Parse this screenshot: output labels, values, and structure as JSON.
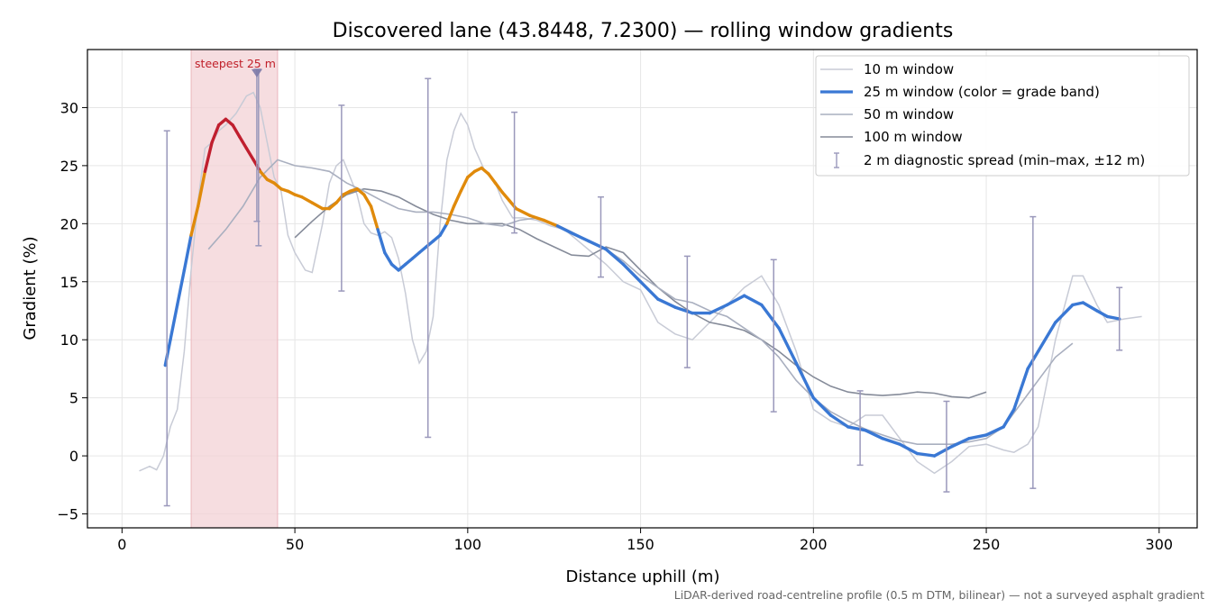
{
  "chart_data": {
    "type": "line",
    "title": "Discovered lane (43.8448, 7.2300) — rolling window gradients",
    "xlabel": "Distance uphill (m)",
    "ylabel": "Gradient (%)",
    "xlim": [
      -10,
      311
    ],
    "ylim": [
      -6.2,
      35
    ],
    "xticks": [
      0,
      50,
      100,
      150,
      200,
      250,
      300
    ],
    "yticks": [
      -5,
      0,
      5,
      10,
      15,
      20,
      25,
      30
    ],
    "grid": true,
    "legend_position": "top-right",
    "footnote": "LiDAR-derived road-centreline profile (0.5 m DTM, bilinear) — not a surveyed asphalt gradient",
    "highlight": {
      "label": "steepest 25 m",
      "x_start": 20,
      "x_end": 45,
      "color": "#f3d2d6",
      "marker_x": 39,
      "marker_y": 33.3
    },
    "grade_band_colors": {
      "low": "#3a78d4",
      "mid": "#e08a0b",
      "high": "#c01f2f"
    },
    "grade_band_thresholds": [
      20,
      25
    ],
    "series": [
      {
        "name": "10 m window",
        "color": "#c8cbd6",
        "x": [
          5,
          8,
          10,
          12,
          14,
          16,
          18,
          20,
          22,
          24,
          26,
          28,
          30,
          33,
          36,
          38,
          40,
          42,
          44,
          46,
          48,
          50,
          53,
          55,
          58,
          60,
          62,
          64,
          66,
          68,
          70,
          72,
          74,
          76,
          78,
          80,
          82,
          84,
          86,
          88,
          90,
          92,
          94,
          96,
          98,
          100,
          102,
          105,
          108,
          110,
          113,
          116,
          120,
          124,
          128,
          132,
          136,
          140,
          145,
          150,
          155,
          160,
          165,
          170,
          175,
          180,
          185,
          190,
          195,
          200,
          205,
          210,
          215,
          220,
          225,
          230,
          235,
          240,
          245,
          250,
          255,
          258,
          262,
          265,
          270,
          275,
          278,
          282,
          285,
          290,
          295
        ],
        "y": [
          -1.3,
          -0.9,
          -1.2,
          0,
          2.5,
          4,
          9,
          16,
          22,
          26.5,
          27,
          28,
          28.5,
          29.5,
          31,
          31.3,
          30,
          27,
          24,
          22.8,
          19,
          17.5,
          16,
          15.8,
          20,
          23.5,
          25,
          25.5,
          24,
          22.5,
          20,
          19.2,
          19,
          19.3,
          18.8,
          17,
          14,
          10,
          8,
          9,
          12,
          20,
          25.5,
          28,
          29.5,
          28.5,
          26.5,
          24.5,
          23.5,
          22,
          20.5,
          20.5,
          20.3,
          19.8,
          19.5,
          18.5,
          17.5,
          16.5,
          15,
          14.3,
          11.5,
          10.5,
          10,
          11.5,
          13,
          14.5,
          15.5,
          13,
          9,
          4,
          3,
          2.5,
          3.5,
          3.5,
          1.5,
          -0.5,
          -1.5,
          -0.5,
          0.8,
          1,
          0.5,
          0.3,
          1,
          2.5,
          10,
          15.5,
          15.5,
          13,
          11.5,
          11.8,
          12
        ]
      },
      {
        "name": "25 m window (color = grade band)",
        "color": "#3a78d4",
        "x": [
          12.5,
          14,
          16,
          18,
          20,
          22,
          24,
          26,
          28,
          30,
          32,
          34,
          36,
          38,
          40,
          42,
          44,
          46,
          48,
          50,
          52,
          55,
          58,
          60,
          62,
          64,
          66,
          68,
          70,
          72,
          74,
          76,
          78,
          80,
          82,
          84,
          86,
          88,
          90,
          92,
          94,
          96,
          98,
          100,
          102,
          104,
          106,
          108,
          110,
          112,
          114,
          118,
          122,
          126,
          130,
          135,
          140,
          145,
          150,
          155,
          160,
          165,
          170,
          175,
          180,
          185,
          190,
          195,
          200,
          205,
          210,
          215,
          220,
          225,
          230,
          235,
          240,
          245,
          250,
          255,
          258,
          262,
          265,
          270,
          275,
          278,
          282,
          285,
          288.5
        ],
        "y": [
          7.8,
          10,
          13,
          16,
          19,
          21.5,
          24.5,
          27,
          28.5,
          29,
          28.5,
          27.5,
          26.5,
          25.5,
          24.5,
          23.8,
          23.5,
          23,
          22.8,
          22.5,
          22.3,
          21.8,
          21.3,
          21.3,
          21.8,
          22.5,
          22.8,
          23,
          22.5,
          21.5,
          19.5,
          17.5,
          16.5,
          16,
          16.5,
          17,
          17.5,
          18,
          18.5,
          19,
          20,
          21.5,
          22.8,
          24,
          24.5,
          24.8,
          24.3,
          23.5,
          22.7,
          22,
          21.3,
          20.7,
          20.3,
          19.8,
          19.2,
          18.5,
          17.8,
          16.5,
          15,
          13.5,
          12.8,
          12.3,
          12.3,
          13,
          13.8,
          13,
          11,
          8,
          5,
          3.5,
          2.5,
          2.2,
          1.5,
          1,
          0.2,
          0,
          0.8,
          1.5,
          1.8,
          2.5,
          4,
          7.5,
          9,
          11.5,
          13,
          13.2,
          12.5,
          12,
          11.8
        ]
      },
      {
        "name": "50 m window",
        "color": "#a9afbf",
        "x": [
          25,
          30,
          35,
          40,
          45,
          50,
          55,
          60,
          65,
          70,
          75,
          80,
          85,
          90,
          95,
          100,
          105,
          110,
          115,
          120,
          125,
          130,
          135,
          140,
          145,
          150,
          155,
          160,
          165,
          170,
          175,
          180,
          185,
          190,
          195,
          200,
          205,
          210,
          215,
          220,
          225,
          230,
          235,
          240,
          245,
          250,
          255,
          260,
          265,
          270,
          275
        ],
        "y": [
          17.8,
          19.5,
          21.5,
          24,
          25.5,
          25,
          24.8,
          24.5,
          23.5,
          22.8,
          22,
          21.3,
          21,
          21,
          20.8,
          20.5,
          20,
          19.8,
          20.3,
          20.5,
          20,
          19.3,
          18.5,
          17.8,
          16.8,
          15.5,
          14.5,
          13.5,
          13.2,
          12.5,
          12,
          11,
          10,
          8.5,
          6.5,
          5,
          3.8,
          3,
          2.3,
          1.8,
          1.3,
          1,
          1,
          1,
          1.2,
          1.5,
          2.5,
          4.5,
          6.5,
          8.5,
          9.7
        ]
      },
      {
        "name": "100 m window",
        "color": "#858b99",
        "x": [
          50,
          55,
          60,
          65,
          70,
          75,
          80,
          85,
          90,
          95,
          100,
          105,
          110,
          115,
          120,
          125,
          130,
          135,
          140,
          145,
          150,
          155,
          160,
          165,
          170,
          175,
          180,
          185,
          190,
          195,
          200,
          205,
          210,
          215,
          220,
          225,
          230,
          235,
          240,
          245,
          250
        ],
        "y": [
          18.8,
          20.2,
          21.5,
          22.5,
          23,
          22.8,
          22.3,
          21.5,
          20.8,
          20.3,
          20,
          20,
          20,
          19.5,
          18.7,
          18,
          17.3,
          17.2,
          18,
          17.5,
          16,
          14.5,
          13.3,
          12.3,
          11.5,
          11.2,
          10.8,
          10,
          9,
          7.8,
          6.8,
          6,
          5.5,
          5.3,
          5.2,
          5.3,
          5.5,
          5.4,
          5.1,
          5,
          5.5
        ]
      }
    ],
    "diagnostic_spread": {
      "name": "2 m diagnostic spread (min–max, ±12 m)",
      "color": "#9a98bb",
      "x": [
        13,
        39,
        39.5,
        63.5,
        88.5,
        113.5,
        138.5,
        163.5,
        188.5,
        213.5,
        238.5,
        263.5,
        288.5
      ],
      "min": [
        -4.3,
        20.2,
        18.1,
        14.2,
        1.6,
        19.2,
        15.4,
        7.6,
        3.8,
        -0.8,
        -3.1,
        -2.8,
        9.1
      ],
      "max": [
        28,
        33.3,
        33.3,
        30.2,
        32.5,
        29.6,
        22.3,
        17.2,
        16.9,
        5.6,
        4.7,
        20.6,
        14.5
      ]
    }
  }
}
